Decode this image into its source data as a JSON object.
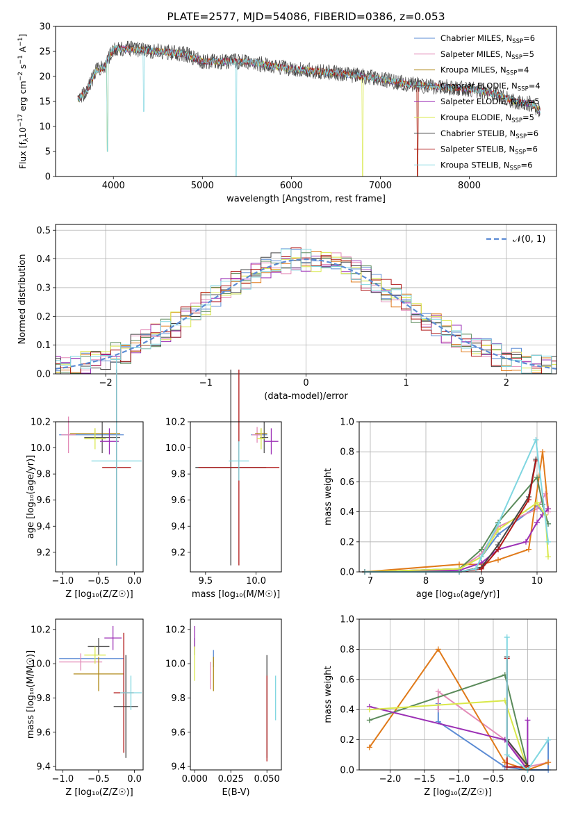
{
  "colors": {
    "chabrier_miles": "#5b8bd4",
    "salpeter_miles": "#e38cb8",
    "kroupa_miles": "#b08a1a",
    "chabrier_elodie": "#555555",
    "salpeter_elodie": "#9b2fb5",
    "kroupa_elodie": "#d9e84a",
    "chabrier_stelib": "#444444",
    "salpeter_stelib": "#b01818",
    "kroupa_stelib": "#7fd6e0",
    "orange": "#e07a1a",
    "green": "#5a8a5a",
    "gaussian": "#5b8bd4",
    "grid": "#b0b0b0"
  },
  "chart_data": [
    {
      "id": "spectrum",
      "type": "line",
      "title": "PLATE=2577, MJD=54086, FIBERID=0386, z=0.053",
      "xlabel": "wavelength [Angstrom, rest frame]",
      "ylabel_parts": [
        "Flux [f",
        "λ",
        "10",
        "−17",
        " erg cm",
        "−2",
        " s",
        "−1",
        " A",
        "−1",
        "]"
      ],
      "xlim": [
        3350,
        8980
      ],
      "ylim": [
        0,
        30
      ],
      "xticks": [
        4000,
        5000,
        6000,
        7000,
        8000
      ],
      "yticks": [
        0,
        5,
        10,
        15,
        20,
        25,
        30
      ],
      "grid": false,
      "legend_position": "top-right",
      "legend": [
        {
          "label": "Chabrier MILES, N",
          "sub": "SSP",
          "val": "=6",
          "color_key": "chabrier_miles"
        },
        {
          "label": "Salpeter MILES, N",
          "sub": "SSP",
          "val": "=5",
          "color_key": "salpeter_miles"
        },
        {
          "label": "Kroupa MILES, N",
          "sub": "SSP",
          "val": "=4",
          "color_key": "kroupa_miles"
        },
        {
          "label": "Chabrier ELODIE, N",
          "sub": "SSP",
          "val": "=4",
          "color_key": "chabrier_elodie"
        },
        {
          "label": "Salpeter ELODIE, N",
          "sub": "SSP",
          "val": "=5",
          "color_key": "salpeter_elodie"
        },
        {
          "label": "Kroupa ELODIE, N",
          "sub": "SSP",
          "val": "=5",
          "color_key": "kroupa_elodie"
        },
        {
          "label": "Chabrier STELIB, N",
          "sub": "SSP",
          "val": "=6",
          "color_key": "chabrier_stelib"
        },
        {
          "label": "Salpeter STELIB, N",
          "sub": "SSP",
          "val": "=6",
          "color_key": "salpeter_stelib"
        },
        {
          "label": "Kroupa STELIB, N",
          "sub": "SSP",
          "val": "=6",
          "color_key": "kroupa_stelib"
        }
      ],
      "continuum": [
        [
          3600,
          15.5
        ],
        [
          3700,
          17
        ],
        [
          3800,
          21
        ],
        [
          3900,
          22
        ],
        [
          3950,
          24
        ],
        [
          4000,
          25.5
        ],
        [
          4200,
          25.5
        ],
        [
          4500,
          25
        ],
        [
          4800,
          24.5
        ],
        [
          5000,
          23
        ],
        [
          5300,
          23
        ],
        [
          5500,
          23
        ],
        [
          5800,
          22
        ],
        [
          6000,
          21.5
        ],
        [
          6300,
          21
        ],
        [
          6600,
          20.5
        ],
        [
          7000,
          19.5
        ],
        [
          7300,
          18.5
        ],
        [
          7600,
          18
        ],
        [
          8000,
          17.5
        ],
        [
          8300,
          16.5
        ],
        [
          8500,
          15
        ],
        [
          8700,
          14.5
        ],
        [
          8800,
          13
        ]
      ],
      "dips": [
        [
          3934,
          5
        ],
        [
          4340,
          13
        ],
        [
          5380,
          0
        ],
        [
          6800,
          0
        ],
        [
          7420,
          0
        ]
      ]
    },
    {
      "id": "residuals",
      "type": "histogram",
      "xlabel": "(data-model)/error",
      "ylabel": "Normed distribution",
      "xlim": [
        -2.5,
        2.5
      ],
      "ylim": [
        0,
        0.52
      ],
      "xticks": [
        -2,
        -1,
        0,
        1,
        2
      ],
      "xtick_labels": [
        "−2",
        "−1",
        "0",
        "1",
        "2"
      ],
      "yticks": [
        0.0,
        0.1,
        0.2,
        0.3,
        0.4,
        0.5
      ],
      "ytick_labels": [
        "0.0",
        "0.1",
        "0.2",
        "0.3",
        "0.4",
        "0.5"
      ],
      "grid": true,
      "legend_label": "𝒩(0, 1)",
      "bin_width": 0.1
    },
    {
      "id": "age_vs_z",
      "type": "errorbar",
      "xlabel": "Z [log₁₀(Z/Z☉)]",
      "ylabel": "age  [log₁₀(age/yr)]",
      "xlim": [
        -1.1,
        0.12
      ],
      "ylim": [
        9.05,
        10.2
      ],
      "xticks": [
        -1.0,
        -0.5,
        0.0
      ],
      "xtick_labels": [
        "−1.0",
        "−0.5",
        "0.0"
      ],
      "yticks": [
        9.2,
        9.4,
        9.6,
        9.8,
        10.0,
        10.2
      ],
      "ytick_labels": [
        "9.2",
        "9.4",
        "9.6",
        "9.8",
        "10.0",
        "10.2"
      ],
      "points": [
        {
          "c": "chabrier_miles",
          "x": -0.6,
          "y": 10.1,
          "xe": 0.45,
          "ye": 0.0
        },
        {
          "c": "salpeter_miles",
          "x": -0.92,
          "y": 10.1,
          "xe": 0.1,
          "ye": 0.14
        },
        {
          "c": "kroupa_miles",
          "x": -0.55,
          "y": 10.11,
          "xe": 0.35,
          "ye": 0.04
        },
        {
          "c": "chabrier_elodie",
          "x": -0.45,
          "y": 10.08,
          "xe": 0.25,
          "ye": 0.12
        },
        {
          "c": "salpeter_elodie",
          "x": -0.35,
          "y": 10.05,
          "xe": 0.13,
          "ye": 0.1
        },
        {
          "c": "kroupa_elodie",
          "x": -0.55,
          "y": 10.07,
          "xe": 0.15,
          "ye": 0.08
        },
        {
          "c": "chabrier_stelib",
          "x": -0.25,
          "y": 9.85,
          "xe": 0.0,
          "ye": 0.75
        },
        {
          "c": "salpeter_stelib",
          "x": -0.25,
          "y": 9.85,
          "xe": 0.2,
          "ye": 0.75
        },
        {
          "c": "kroupa_stelib",
          "x": -0.25,
          "y": 9.9,
          "xe": 0.35,
          "ye": 0.8
        }
      ]
    },
    {
      "id": "age_vs_mass",
      "type": "errorbar",
      "xlabel": "mass [log₁₀(M/M☉)]",
      "ylabel": "",
      "xlim": [
        9.35,
        10.25
      ],
      "ylim": [
        9.05,
        10.2
      ],
      "xticks": [
        9.5,
        10.0
      ],
      "xtick_labels": [
        "9.5",
        "10.0"
      ],
      "yticks": [
        9.2,
        9.4,
        9.6,
        9.8,
        10.0,
        10.2
      ],
      "ytick_labels": [
        "9.2",
        "9.4",
        "9.6",
        "9.8",
        "10.0",
        "10.2"
      ],
      "points": [
        {
          "c": "chabrier_miles",
          "x": 10.03,
          "y": 10.1,
          "xe": 0.08,
          "ye": 0.0
        },
        {
          "c": "salpeter_miles",
          "x": 10.01,
          "y": 10.1,
          "xe": 0.05,
          "ye": 0.06
        },
        {
          "c": "kroupa_miles",
          "x": 10.05,
          "y": 10.11,
          "xe": 0.06,
          "ye": 0.04
        },
        {
          "c": "chabrier_elodie",
          "x": 10.08,
          "y": 10.08,
          "xe": 0.04,
          "ye": 0.12
        },
        {
          "c": "salpeter_elodie",
          "x": 10.15,
          "y": 10.05,
          "xe": 0.07,
          "ye": 0.1
        },
        {
          "c": "kroupa_elodie",
          "x": 10.05,
          "y": 10.07,
          "xe": 0.04,
          "ye": 0.08
        },
        {
          "c": "chabrier_stelib",
          "x": 9.75,
          "y": 9.85,
          "xe": 0.35,
          "ye": 0.75
        },
        {
          "c": "salpeter_stelib",
          "x": 9.83,
          "y": 9.85,
          "xe": 0.4,
          "ye": 0.75
        },
        {
          "c": "kroupa_stelib",
          "x": 9.83,
          "y": 9.9,
          "xe": 0.1,
          "ye": 0.15
        }
      ]
    },
    {
      "id": "weight_vs_age",
      "type": "line",
      "xlabel": "age  [log₁₀(age/yr)]",
      "ylabel": "mass weight",
      "xlim": [
        6.8,
        10.35
      ],
      "ylim": [
        0,
        1
      ],
      "xticks": [
        7,
        8,
        9,
        10
      ],
      "xtick_labels": [
        "7",
        "8",
        "9",
        "10"
      ],
      "yticks": [
        0.0,
        0.2,
        0.4,
        0.6,
        0.8,
        1.0
      ],
      "ytick_labels": [
        "0.0",
        "0.2",
        "0.4",
        "0.6",
        "0.8",
        "1.0"
      ],
      "grid": true,
      "series": [
        {
          "c": "chabrier_miles",
          "x": [
            6.9,
            8.6,
            9.0,
            9.3,
            10.0,
            10.15,
            10.2
          ],
          "y": [
            0.0,
            0.02,
            0.1,
            0.25,
            0.44,
            0.38,
            0.32
          ]
        },
        {
          "c": "salpeter_miles",
          "x": [
            6.9,
            8.6,
            9.0,
            9.3,
            10.0,
            10.15,
            10.2
          ],
          "y": [
            0.0,
            0.02,
            0.12,
            0.3,
            0.42,
            0.52,
            0.4
          ]
        },
        {
          "c": "orange",
          "x": [
            6.9,
            8.6,
            9.0,
            9.3,
            9.85,
            10.1,
            10.2
          ],
          "y": [
            0.0,
            0.05,
            0.05,
            0.08,
            0.15,
            0.8,
            0.42
          ]
        },
        {
          "c": "green",
          "x": [
            6.9,
            8.6,
            9.0,
            9.3,
            10.0,
            10.1,
            10.2
          ],
          "y": [
            0.0,
            0.02,
            0.15,
            0.33,
            0.63,
            0.45,
            0.32
          ]
        },
        {
          "c": "salpeter_elodie",
          "x": [
            6.9,
            8.6,
            9.0,
            9.3,
            9.8,
            10.0,
            10.1,
            10.2
          ],
          "y": [
            0.0,
            0.01,
            0.06,
            0.15,
            0.2,
            0.33,
            0.38,
            0.42
          ]
        },
        {
          "c": "kroupa_elodie",
          "x": [
            6.9,
            8.6,
            9.0,
            9.3,
            10.0,
            10.15,
            10.2
          ],
          "y": [
            0.0,
            0.02,
            0.1,
            0.28,
            0.46,
            0.38,
            0.1
          ]
        },
        {
          "c": "chabrier_stelib",
          "x": [
            6.9,
            8.6,
            9.0,
            9.3,
            9.85,
            9.98
          ],
          "y": [
            0.0,
            0.0,
            0.03,
            0.18,
            0.5,
            0.75
          ]
        },
        {
          "c": "salpeter_stelib",
          "x": [
            6.9,
            8.6,
            9.0,
            9.3,
            9.85,
            9.98
          ],
          "y": [
            0.0,
            0.0,
            0.02,
            0.15,
            0.48,
            0.74
          ]
        },
        {
          "c": "kroupa_stelib",
          "x": [
            6.9,
            8.6,
            8.9,
            9.0,
            9.3,
            9.98,
            10.2
          ],
          "y": [
            0.0,
            0.0,
            0.02,
            0.1,
            0.32,
            0.88,
            0.2
          ]
        }
      ]
    },
    {
      "id": "mass_vs_z",
      "type": "errorbar",
      "xlabel": "Z [log₁₀(Z/Z☉)]",
      "ylabel": "mass [log₁₀(M/M☉)]",
      "xlim": [
        -1.1,
        0.12
      ],
      "ylim": [
        9.38,
        10.26
      ],
      "xticks": [
        -1.0,
        -0.5,
        0.0
      ],
      "xtick_labels": [
        "−1.0",
        "−0.5",
        "0.0"
      ],
      "yticks": [
        9.4,
        9.6,
        9.8,
        10.0,
        10.2
      ],
      "ytick_labels": [
        "9.4",
        "9.6",
        "9.8",
        "10.0",
        "10.2"
      ],
      "points": [
        {
          "c": "chabrier_miles",
          "x": -0.6,
          "y": 10.03,
          "xe": 0.45,
          "ye": 0.0
        },
        {
          "c": "salpeter_miles",
          "x": -0.75,
          "y": 10.01,
          "xe": 0.3,
          "ye": 0.05
        },
        {
          "c": "kroupa_miles",
          "x": -0.5,
          "y": 9.94,
          "xe": 0.35,
          "ye": 0.1
        },
        {
          "c": "chabrier_elodie",
          "x": -0.5,
          "y": 10.1,
          "xe": 0.15,
          "ye": 0.05
        },
        {
          "c": "salpeter_elodie",
          "x": -0.3,
          "y": 10.15,
          "xe": 0.12,
          "ye": 0.07
        },
        {
          "c": "kroupa_elodie",
          "x": -0.55,
          "y": 10.05,
          "xe": 0.15,
          "ye": 0.05
        },
        {
          "c": "chabrier_stelib",
          "x": -0.12,
          "y": 9.75,
          "xe": 0.17,
          "ye": 0.3
        },
        {
          "c": "salpeter_stelib",
          "x": -0.15,
          "y": 9.83,
          "xe": 0.14,
          "ye": 0.35
        },
        {
          "c": "kroupa_stelib",
          "x": -0.05,
          "y": 9.83,
          "xe": 0.15,
          "ye": 0.1
        }
      ]
    },
    {
      "id": "mass_vs_ebv",
      "type": "errorbar",
      "xlabel": "E(B-V)",
      "ylabel": "",
      "xlim": [
        -0.003,
        0.06
      ],
      "ylim": [
        9.38,
        10.26
      ],
      "xticks": [
        0.0,
        0.025,
        0.05
      ],
      "xtick_labels": [
        "0.000",
        "0.025",
        "0.050"
      ],
      "yticks": [
        9.4,
        9.6,
        9.8,
        10.0,
        10.2
      ],
      "ytick_labels": [
        "9.4",
        "9.6",
        "9.8",
        "10.0",
        "10.2"
      ],
      "points": [
        {
          "c": "chabrier_miles",
          "x": 0.013,
          "y": 10.03,
          "xe": 0.0,
          "ye": 0.05
        },
        {
          "c": "salpeter_miles",
          "x": 0.011,
          "y": 9.93,
          "xe": 0.0,
          "ye": 0.08
        },
        {
          "c": "kroupa_miles",
          "x": 0.013,
          "y": 9.94,
          "xe": 0.0,
          "ye": 0.1
        },
        {
          "c": "chabrier_elodie",
          "x": 0.0,
          "y": 10.1,
          "xe": 0.0,
          "ye": 0.05
        },
        {
          "c": "salpeter_elodie",
          "x": 0.0,
          "y": 10.15,
          "xe": 0.0,
          "ye": 0.07
        },
        {
          "c": "kroupa_elodie",
          "x": 0.0,
          "y": 10.0,
          "xe": 0.0,
          "ye": 0.1
        },
        {
          "c": "chabrier_stelib",
          "x": 0.05,
          "y": 9.75,
          "xe": 0.0,
          "ye": 0.3
        },
        {
          "c": "salpeter_stelib",
          "x": 0.05,
          "y": 9.68,
          "xe": 0.0,
          "ye": 0.25
        },
        {
          "c": "kroupa_stelib",
          "x": 0.056,
          "y": 9.8,
          "xe": 0.0,
          "ye": 0.13
        }
      ]
    },
    {
      "id": "weight_vs_z",
      "type": "line",
      "xlabel": "Z [log₁₀(Z/Z☉)]",
      "ylabel": "mass weight",
      "xlim": [
        -2.45,
        0.42
      ],
      "ylim": [
        0,
        1
      ],
      "xticks": [
        -2.0,
        -1.5,
        -1.0,
        -0.5,
        0.0
      ],
      "xtick_labels": [
        "−2.0",
        "−1.5",
        "−1.0",
        "−0.5",
        "0.0"
      ],
      "yticks": [
        0.0,
        0.2,
        0.4,
        0.6,
        0.8,
        1.0
      ],
      "ytick_labels": [
        "0.0",
        "0.2",
        "0.4",
        "0.6",
        "0.8",
        "1.0"
      ],
      "grid": true,
      "series": [
        {
          "c": "chabrier_miles",
          "x": [
            -1.3,
            -1.3,
            -0.33,
            0.0,
            0.3,
            0.3
          ],
          "y": [
            0.44,
            0.32,
            0.02,
            0.0,
            0.0,
            0.2
          ]
        },
        {
          "c": "salpeter_miles",
          "x": [
            -1.3,
            -1.3,
            -0.33,
            0.0,
            0.3
          ],
          "y": [
            0.4,
            0.52,
            0.2,
            0.02,
            0.05
          ]
        },
        {
          "c": "orange",
          "x": [
            -2.3,
            -1.3,
            -0.33,
            0.0,
            0.3
          ],
          "y": [
            0.15,
            0.8,
            0.05,
            0.0,
            0.05
          ]
        },
        {
          "c": "green",
          "x": [
            -2.3,
            -0.33,
            0.0
          ],
          "y": [
            0.33,
            0.63,
            0.02
          ]
        },
        {
          "c": "salpeter_elodie",
          "x": [
            -2.3,
            -0.33,
            0.0,
            0.0
          ],
          "y": [
            0.42,
            0.2,
            0.0,
            0.33
          ]
        },
        {
          "c": "kroupa_elodie",
          "x": [
            -2.3,
            -0.33,
            0.0
          ],
          "y": [
            0.4,
            0.46,
            0.0
          ]
        },
        {
          "c": "chabrier_stelib",
          "x": [
            -0.3,
            -0.3,
            0.0
          ],
          "y": [
            0.75,
            0.2,
            0.03
          ]
        },
        {
          "c": "salpeter_stelib",
          "x": [
            -0.3,
            -0.3,
            0.0
          ],
          "y": [
            0.74,
            0.02,
            0.02
          ]
        },
        {
          "c": "kroupa_stelib",
          "x": [
            -0.3,
            -0.3,
            0.0,
            0.3
          ],
          "y": [
            0.88,
            0.1,
            0.0,
            0.2
          ]
        }
      ]
    }
  ]
}
